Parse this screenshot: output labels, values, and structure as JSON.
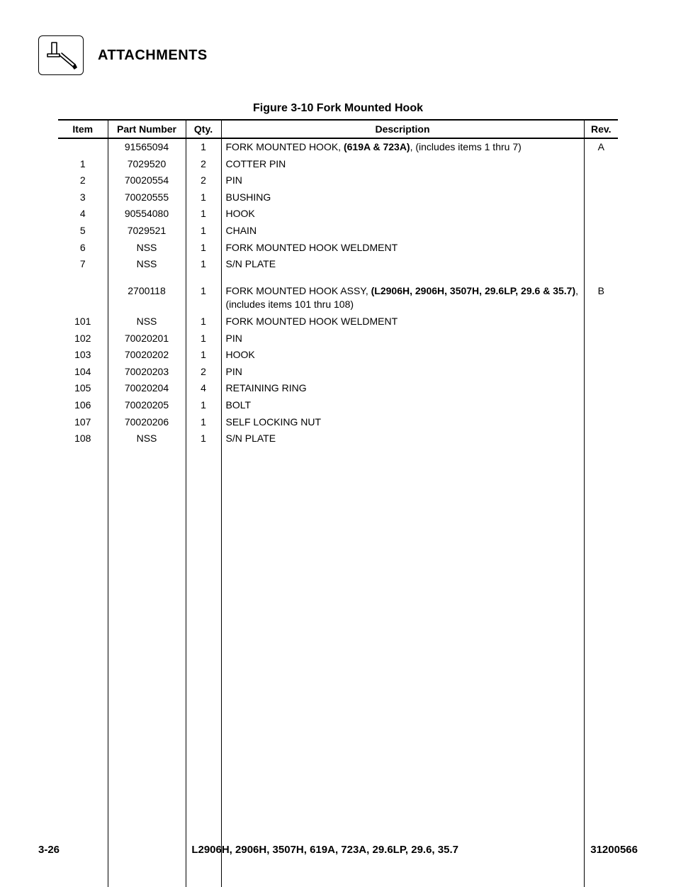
{
  "header": {
    "section_title": "ATTACHMENTS"
  },
  "table": {
    "caption": "Figure 3-10 Fork Mounted Hook",
    "headers": {
      "item": "Item",
      "part": "Part Number",
      "qty": "Qty.",
      "desc": "Description",
      "rev": "Rev."
    },
    "rows": [
      {
        "item": "",
        "part": "91565094",
        "qty": "1",
        "desc_pre": "FORK MOUNTED HOOK, ",
        "desc_bold": "(619A & 723A)",
        "desc_post": ", (includes items 1 thru 7)",
        "rev": "A",
        "indent": "main"
      },
      {
        "item": "1",
        "part": "7029520",
        "qty": "2",
        "desc_pre": "COTTER PIN",
        "desc_bold": "",
        "desc_post": "",
        "rev": "",
        "indent": "sub"
      },
      {
        "item": "2",
        "part": "70020554",
        "qty": "2",
        "desc_pre": "PIN",
        "desc_bold": "",
        "desc_post": "",
        "rev": "",
        "indent": "sub"
      },
      {
        "item": "3",
        "part": "70020555",
        "qty": "1",
        "desc_pre": "BUSHING",
        "desc_bold": "",
        "desc_post": "",
        "rev": "",
        "indent": "sub"
      },
      {
        "item": "4",
        "part": "90554080",
        "qty": "1",
        "desc_pre": "HOOK",
        "desc_bold": "",
        "desc_post": "",
        "rev": "",
        "indent": "sub"
      },
      {
        "item": "5",
        "part": "7029521",
        "qty": "1",
        "desc_pre": "CHAIN",
        "desc_bold": "",
        "desc_post": "",
        "rev": "",
        "indent": "sub"
      },
      {
        "item": "6",
        "part": "NSS",
        "qty": "1",
        "desc_pre": "FORK MOUNTED HOOK WELDMENT",
        "desc_bold": "",
        "desc_post": "",
        "rev": "",
        "indent": "sub"
      },
      {
        "item": "7",
        "part": "NSS",
        "qty": "1",
        "desc_pre": "S/N PLATE",
        "desc_bold": "",
        "desc_post": "",
        "rev": "",
        "indent": "sub"
      },
      {
        "spacer": true
      },
      {
        "item": "",
        "part": "2700118",
        "qty": "1",
        "desc_pre": "FORK MOUNTED HOOK ASSY, ",
        "desc_bold": "(L2906H, 2906H, 3507H, 29.6LP, 29.6 & 35.7)",
        "desc_post": ", (includes items 101 thru 108)",
        "rev": "B",
        "indent": "main"
      },
      {
        "item": "101",
        "part": "NSS",
        "qty": "1",
        "desc_pre": "FORK MOUNTED HOOK WELDMENT",
        "desc_bold": "",
        "desc_post": "",
        "rev": "",
        "indent": "sub"
      },
      {
        "item": "102",
        "part": "70020201",
        "qty": "1",
        "desc_pre": "PIN",
        "desc_bold": "",
        "desc_post": "",
        "rev": "",
        "indent": "sub"
      },
      {
        "item": "103",
        "part": "70020202",
        "qty": "1",
        "desc_pre": "HOOK",
        "desc_bold": "",
        "desc_post": "",
        "rev": "",
        "indent": "sub"
      },
      {
        "item": "104",
        "part": "70020203",
        "qty": "2",
        "desc_pre": "PIN",
        "desc_bold": "",
        "desc_post": "",
        "rev": "",
        "indent": "sub"
      },
      {
        "item": "105",
        "part": "70020204",
        "qty": "4",
        "desc_pre": "RETAINING RING",
        "desc_bold": "",
        "desc_post": "",
        "rev": "",
        "indent": "sub"
      },
      {
        "item": "106",
        "part": "70020205",
        "qty": "1",
        "desc_pre": "BOLT",
        "desc_bold": "",
        "desc_post": "",
        "rev": "",
        "indent": "sub"
      },
      {
        "item": "107",
        "part": "70020206",
        "qty": "1",
        "desc_pre": "SELF LOCKING NUT",
        "desc_bold": "",
        "desc_post": "",
        "rev": "",
        "indent": "sub"
      },
      {
        "item": "108",
        "part": "NSS",
        "qty": "1",
        "desc_pre": "S/N PLATE",
        "desc_bold": "",
        "desc_post": "",
        "rev": "",
        "indent": "sub"
      }
    ]
  },
  "footer": {
    "page": "3-26",
    "models": "L2906H, 2906H, 3507H, 619A, 723A, 29.6LP, 29.6, 35.7",
    "docnum": "31200566"
  },
  "colors": {
    "text": "#000000",
    "background": "#ffffff",
    "border": "#000000"
  }
}
